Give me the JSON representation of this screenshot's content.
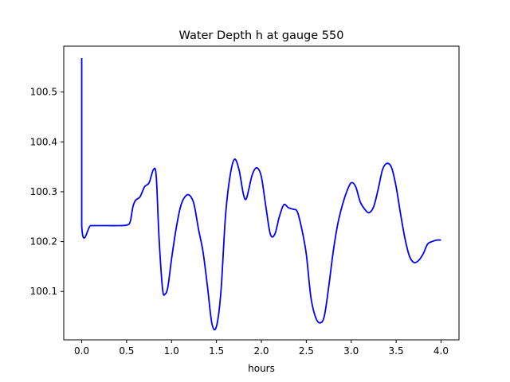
{
  "chart_data": {
    "type": "line",
    "title": "Water Depth h at gauge 550",
    "xlabel": "hours",
    "ylabel": "",
    "xlim": [
      -0.2,
      4.2
    ],
    "ylim": [
      100.003,
      100.592
    ],
    "xticks": [
      0.0,
      0.5,
      1.0,
      1.5,
      2.0,
      2.5,
      3.0,
      3.5,
      4.0
    ],
    "xtick_labels": [
      "0.0",
      "0.5",
      "1.0",
      "1.5",
      "2.0",
      "2.5",
      "3.0",
      "3.5",
      "4.0"
    ],
    "yticks": [
      100.1,
      100.2,
      100.3,
      100.4,
      100.5
    ],
    "ytick_labels": [
      "100.1",
      "100.2",
      "100.3",
      "100.4",
      "100.5"
    ],
    "grid": false,
    "line_color": "#0000ff",
    "series": [
      {
        "x": [
          0.0,
          0.0,
          0.0,
          0.1,
          0.2,
          0.3,
          0.4,
          0.5,
          0.54,
          0.57,
          0.6,
          0.65,
          0.7,
          0.75,
          0.8,
          0.83,
          0.86,
          0.9,
          0.93,
          0.96,
          1.0,
          1.05,
          1.1,
          1.15,
          1.2,
          1.25,
          1.3,
          1.35,
          1.4,
          1.45,
          1.5,
          1.55,
          1.6,
          1.65,
          1.7,
          1.75,
          1.8,
          1.83,
          1.86,
          1.9,
          1.95,
          2.0,
          2.05,
          2.1,
          2.15,
          2.2,
          2.25,
          2.3,
          2.35,
          2.4,
          2.45,
          2.5,
          2.55,
          2.6,
          2.65,
          2.7,
          2.75,
          2.8,
          2.85,
          2.9,
          2.95,
          3.0,
          3.05,
          3.1,
          3.15,
          3.2,
          3.25,
          3.3,
          3.35,
          3.4,
          3.45,
          3.5,
          3.55,
          3.6,
          3.65,
          3.7,
          3.75,
          3.8,
          3.85,
          3.9,
          3.95,
          4.0
        ],
        "y": [
          100.568,
          100.568,
          100.232,
          100.232,
          100.232,
          100.232,
          100.232,
          100.233,
          100.24,
          100.27,
          100.283,
          100.29,
          100.31,
          100.318,
          100.345,
          100.33,
          100.21,
          100.105,
          100.095,
          100.11,
          100.165,
          100.225,
          100.27,
          100.29,
          100.293,
          100.275,
          100.225,
          100.18,
          100.11,
          100.035,
          100.03,
          100.1,
          100.25,
          100.33,
          100.365,
          100.345,
          100.295,
          100.285,
          100.305,
          100.335,
          100.348,
          100.33,
          100.27,
          100.215,
          100.215,
          100.25,
          100.274,
          100.268,
          100.265,
          100.26,
          100.225,
          100.175,
          100.09,
          100.05,
          100.037,
          100.05,
          100.11,
          100.18,
          100.235,
          100.272,
          100.3,
          100.318,
          100.31,
          100.28,
          100.265,
          100.258,
          100.27,
          100.305,
          100.345,
          100.357,
          100.348,
          100.31,
          100.255,
          100.205,
          100.17,
          100.158,
          100.162,
          100.175,
          100.195,
          100.2,
          100.203,
          100.203
        ]
      }
    ]
  }
}
